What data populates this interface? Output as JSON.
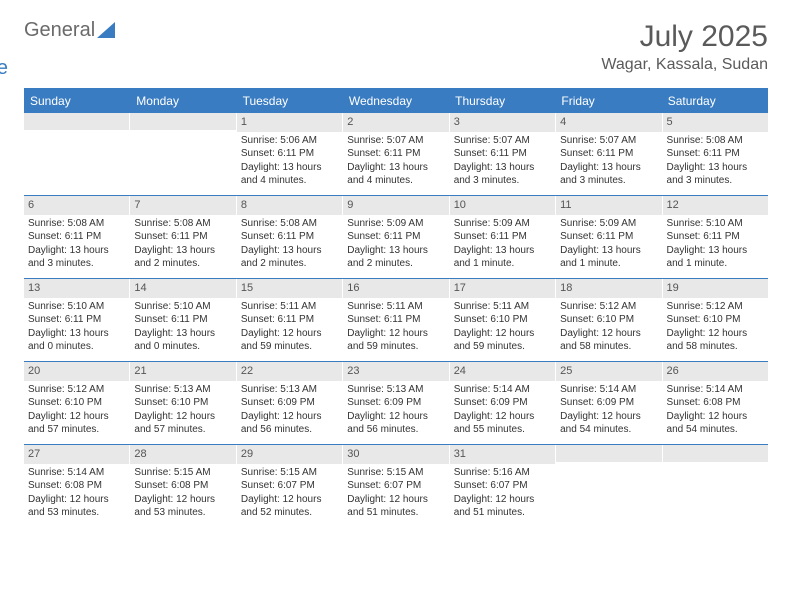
{
  "logo": {
    "part1": "General",
    "part2": "Blue"
  },
  "title": "July 2025",
  "location": "Wagar, Kassala, Sudan",
  "weekdays": [
    "Sunday",
    "Monday",
    "Tuesday",
    "Wednesday",
    "Thursday",
    "Friday",
    "Saturday"
  ],
  "colors": {
    "header_bg": "#3a7cc2",
    "daynum_bg": "#e8e8e8",
    "text": "#333333",
    "title_text": "#5a5a5a"
  },
  "typography": {
    "title_fontsize": 30,
    "location_fontsize": 16,
    "weekday_fontsize": 12,
    "daynum_fontsize": 11,
    "body_fontsize": 10
  },
  "weeks": [
    [
      {
        "empty": true
      },
      {
        "empty": true
      },
      {
        "num": "1",
        "sunrise": "Sunrise: 5:06 AM",
        "sunset": "Sunset: 6:11 PM",
        "daylight": "Daylight: 13 hours and 4 minutes."
      },
      {
        "num": "2",
        "sunrise": "Sunrise: 5:07 AM",
        "sunset": "Sunset: 6:11 PM",
        "daylight": "Daylight: 13 hours and 4 minutes."
      },
      {
        "num": "3",
        "sunrise": "Sunrise: 5:07 AM",
        "sunset": "Sunset: 6:11 PM",
        "daylight": "Daylight: 13 hours and 3 minutes."
      },
      {
        "num": "4",
        "sunrise": "Sunrise: 5:07 AM",
        "sunset": "Sunset: 6:11 PM",
        "daylight": "Daylight: 13 hours and 3 minutes."
      },
      {
        "num": "5",
        "sunrise": "Sunrise: 5:08 AM",
        "sunset": "Sunset: 6:11 PM",
        "daylight": "Daylight: 13 hours and 3 minutes."
      }
    ],
    [
      {
        "num": "6",
        "sunrise": "Sunrise: 5:08 AM",
        "sunset": "Sunset: 6:11 PM",
        "daylight": "Daylight: 13 hours and 3 minutes."
      },
      {
        "num": "7",
        "sunrise": "Sunrise: 5:08 AM",
        "sunset": "Sunset: 6:11 PM",
        "daylight": "Daylight: 13 hours and 2 minutes."
      },
      {
        "num": "8",
        "sunrise": "Sunrise: 5:08 AM",
        "sunset": "Sunset: 6:11 PM",
        "daylight": "Daylight: 13 hours and 2 minutes."
      },
      {
        "num": "9",
        "sunrise": "Sunrise: 5:09 AM",
        "sunset": "Sunset: 6:11 PM",
        "daylight": "Daylight: 13 hours and 2 minutes."
      },
      {
        "num": "10",
        "sunrise": "Sunrise: 5:09 AM",
        "sunset": "Sunset: 6:11 PM",
        "daylight": "Daylight: 13 hours and 1 minute."
      },
      {
        "num": "11",
        "sunrise": "Sunrise: 5:09 AM",
        "sunset": "Sunset: 6:11 PM",
        "daylight": "Daylight: 13 hours and 1 minute."
      },
      {
        "num": "12",
        "sunrise": "Sunrise: 5:10 AM",
        "sunset": "Sunset: 6:11 PM",
        "daylight": "Daylight: 13 hours and 1 minute."
      }
    ],
    [
      {
        "num": "13",
        "sunrise": "Sunrise: 5:10 AM",
        "sunset": "Sunset: 6:11 PM",
        "daylight": "Daylight: 13 hours and 0 minutes."
      },
      {
        "num": "14",
        "sunrise": "Sunrise: 5:10 AM",
        "sunset": "Sunset: 6:11 PM",
        "daylight": "Daylight: 13 hours and 0 minutes."
      },
      {
        "num": "15",
        "sunrise": "Sunrise: 5:11 AM",
        "sunset": "Sunset: 6:11 PM",
        "daylight": "Daylight: 12 hours and 59 minutes."
      },
      {
        "num": "16",
        "sunrise": "Sunrise: 5:11 AM",
        "sunset": "Sunset: 6:11 PM",
        "daylight": "Daylight: 12 hours and 59 minutes."
      },
      {
        "num": "17",
        "sunrise": "Sunrise: 5:11 AM",
        "sunset": "Sunset: 6:10 PM",
        "daylight": "Daylight: 12 hours and 59 minutes."
      },
      {
        "num": "18",
        "sunrise": "Sunrise: 5:12 AM",
        "sunset": "Sunset: 6:10 PM",
        "daylight": "Daylight: 12 hours and 58 minutes."
      },
      {
        "num": "19",
        "sunrise": "Sunrise: 5:12 AM",
        "sunset": "Sunset: 6:10 PM",
        "daylight": "Daylight: 12 hours and 58 minutes."
      }
    ],
    [
      {
        "num": "20",
        "sunrise": "Sunrise: 5:12 AM",
        "sunset": "Sunset: 6:10 PM",
        "daylight": "Daylight: 12 hours and 57 minutes."
      },
      {
        "num": "21",
        "sunrise": "Sunrise: 5:13 AM",
        "sunset": "Sunset: 6:10 PM",
        "daylight": "Daylight: 12 hours and 57 minutes."
      },
      {
        "num": "22",
        "sunrise": "Sunrise: 5:13 AM",
        "sunset": "Sunset: 6:09 PM",
        "daylight": "Daylight: 12 hours and 56 minutes."
      },
      {
        "num": "23",
        "sunrise": "Sunrise: 5:13 AM",
        "sunset": "Sunset: 6:09 PM",
        "daylight": "Daylight: 12 hours and 56 minutes."
      },
      {
        "num": "24",
        "sunrise": "Sunrise: 5:14 AM",
        "sunset": "Sunset: 6:09 PM",
        "daylight": "Daylight: 12 hours and 55 minutes."
      },
      {
        "num": "25",
        "sunrise": "Sunrise: 5:14 AM",
        "sunset": "Sunset: 6:09 PM",
        "daylight": "Daylight: 12 hours and 54 minutes."
      },
      {
        "num": "26",
        "sunrise": "Sunrise: 5:14 AM",
        "sunset": "Sunset: 6:08 PM",
        "daylight": "Daylight: 12 hours and 54 minutes."
      }
    ],
    [
      {
        "num": "27",
        "sunrise": "Sunrise: 5:14 AM",
        "sunset": "Sunset: 6:08 PM",
        "daylight": "Daylight: 12 hours and 53 minutes."
      },
      {
        "num": "28",
        "sunrise": "Sunrise: 5:15 AM",
        "sunset": "Sunset: 6:08 PM",
        "daylight": "Daylight: 12 hours and 53 minutes."
      },
      {
        "num": "29",
        "sunrise": "Sunrise: 5:15 AM",
        "sunset": "Sunset: 6:07 PM",
        "daylight": "Daylight: 12 hours and 52 minutes."
      },
      {
        "num": "30",
        "sunrise": "Sunrise: 5:15 AM",
        "sunset": "Sunset: 6:07 PM",
        "daylight": "Daylight: 12 hours and 51 minutes."
      },
      {
        "num": "31",
        "sunrise": "Sunrise: 5:16 AM",
        "sunset": "Sunset: 6:07 PM",
        "daylight": "Daylight: 12 hours and 51 minutes."
      },
      {
        "empty": true
      },
      {
        "empty": true
      }
    ]
  ]
}
